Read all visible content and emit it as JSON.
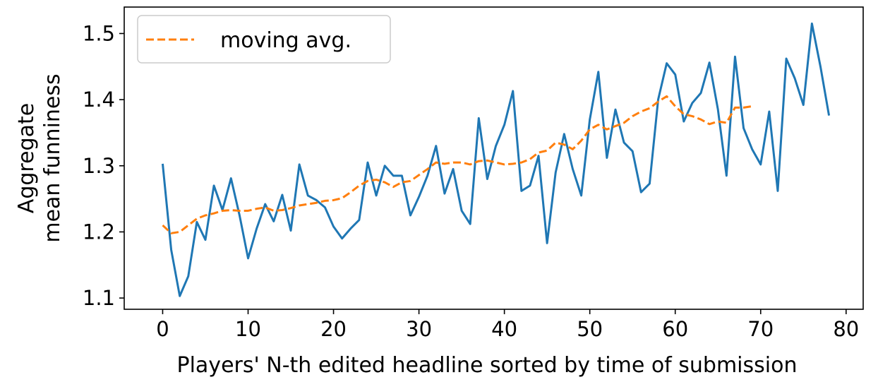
{
  "chart_data": {
    "type": "line",
    "xlabel": "Players' N-th edited headline sorted by time of submission",
    "ylabel_lines": [
      "Aggregate",
      "mean funniness"
    ],
    "xlim": [
      -4.5,
      82
    ],
    "ylim": [
      1.083,
      1.54
    ],
    "xticks": [
      0,
      10,
      20,
      30,
      40,
      50,
      60,
      70,
      80
    ],
    "yticks": [
      1.1,
      1.2,
      1.3,
      1.4,
      1.5
    ],
    "grid": false,
    "legend_position": "top-left",
    "series": [
      {
        "name": "",
        "color": "#1f77b4",
        "style": "solid",
        "x": [
          0,
          1,
          2,
          3,
          4,
          5,
          6,
          7,
          8,
          9,
          10,
          11,
          12,
          13,
          14,
          15,
          16,
          17,
          18,
          19,
          20,
          21,
          22,
          23,
          24,
          25,
          26,
          27,
          28,
          29,
          30,
          31,
          32,
          33,
          34,
          35,
          36,
          37,
          38,
          39,
          40,
          41,
          42,
          43,
          44,
          45,
          46,
          47,
          48,
          49,
          50,
          51,
          52,
          53,
          54,
          55,
          56,
          57,
          58,
          59,
          60,
          61,
          62,
          63,
          64,
          65,
          66,
          67,
          68,
          69,
          70,
          71,
          72,
          73,
          74,
          75,
          76,
          77,
          78
        ],
        "y": [
          1.303,
          1.173,
          1.103,
          1.133,
          1.215,
          1.188,
          1.27,
          1.233,
          1.281,
          1.225,
          1.16,
          1.205,
          1.242,
          1.216,
          1.256,
          1.202,
          1.302,
          1.255,
          1.248,
          1.237,
          1.208,
          1.19,
          1.205,
          1.218,
          1.305,
          1.255,
          1.3,
          1.285,
          1.285,
          1.225,
          1.253,
          1.285,
          1.33,
          1.258,
          1.295,
          1.232,
          1.212,
          1.372,
          1.28,
          1.33,
          1.362,
          1.413,
          1.262,
          1.27,
          1.315,
          1.183,
          1.29,
          1.348,
          1.295,
          1.255,
          1.37,
          1.442,
          1.312,
          1.385,
          1.335,
          1.322,
          1.26,
          1.273,
          1.4,
          1.455,
          1.438,
          1.367,
          1.395,
          1.41,
          1.456,
          1.385,
          1.285,
          1.465,
          1.357,
          1.325,
          1.302,
          1.382,
          1.262,
          1.462,
          1.432,
          1.392,
          1.515,
          1.45,
          1.376
        ]
      },
      {
        "name": "moving avg.",
        "color": "#ff7f0e",
        "style": "dashed",
        "x": [
          0,
          1,
          2,
          3,
          4,
          5,
          6,
          7,
          8,
          9,
          10,
          11,
          12,
          13,
          14,
          15,
          16,
          17,
          18,
          19,
          20,
          21,
          22,
          23,
          24,
          25,
          26,
          27,
          28,
          29,
          30,
          31,
          32,
          33,
          34,
          35,
          36,
          37,
          38,
          39,
          40,
          41,
          42,
          43,
          44,
          45,
          46,
          47,
          48,
          49,
          50,
          51,
          52,
          53,
          54,
          55,
          56,
          57,
          58,
          59,
          60,
          61,
          62,
          63,
          64,
          65,
          66,
          67,
          68,
          69
        ],
        "y": [
          1.21,
          1.198,
          1.2,
          1.21,
          1.22,
          1.225,
          1.228,
          1.232,
          1.233,
          1.232,
          1.232,
          1.235,
          1.237,
          1.232,
          1.233,
          1.236,
          1.24,
          1.242,
          1.244,
          1.247,
          1.248,
          1.251,
          1.26,
          1.27,
          1.277,
          1.279,
          1.275,
          1.268,
          1.275,
          1.277,
          1.286,
          1.295,
          1.305,
          1.303,
          1.305,
          1.305,
          1.302,
          1.307,
          1.308,
          1.305,
          1.302,
          1.303,
          1.305,
          1.31,
          1.32,
          1.323,
          1.335,
          1.332,
          1.325,
          1.338,
          1.355,
          1.362,
          1.355,
          1.36,
          1.365,
          1.375,
          1.382,
          1.387,
          1.397,
          1.405,
          1.39,
          1.378,
          1.375,
          1.37,
          1.363,
          1.367,
          1.365,
          1.388,
          1.388,
          1.39
        ]
      }
    ]
  }
}
